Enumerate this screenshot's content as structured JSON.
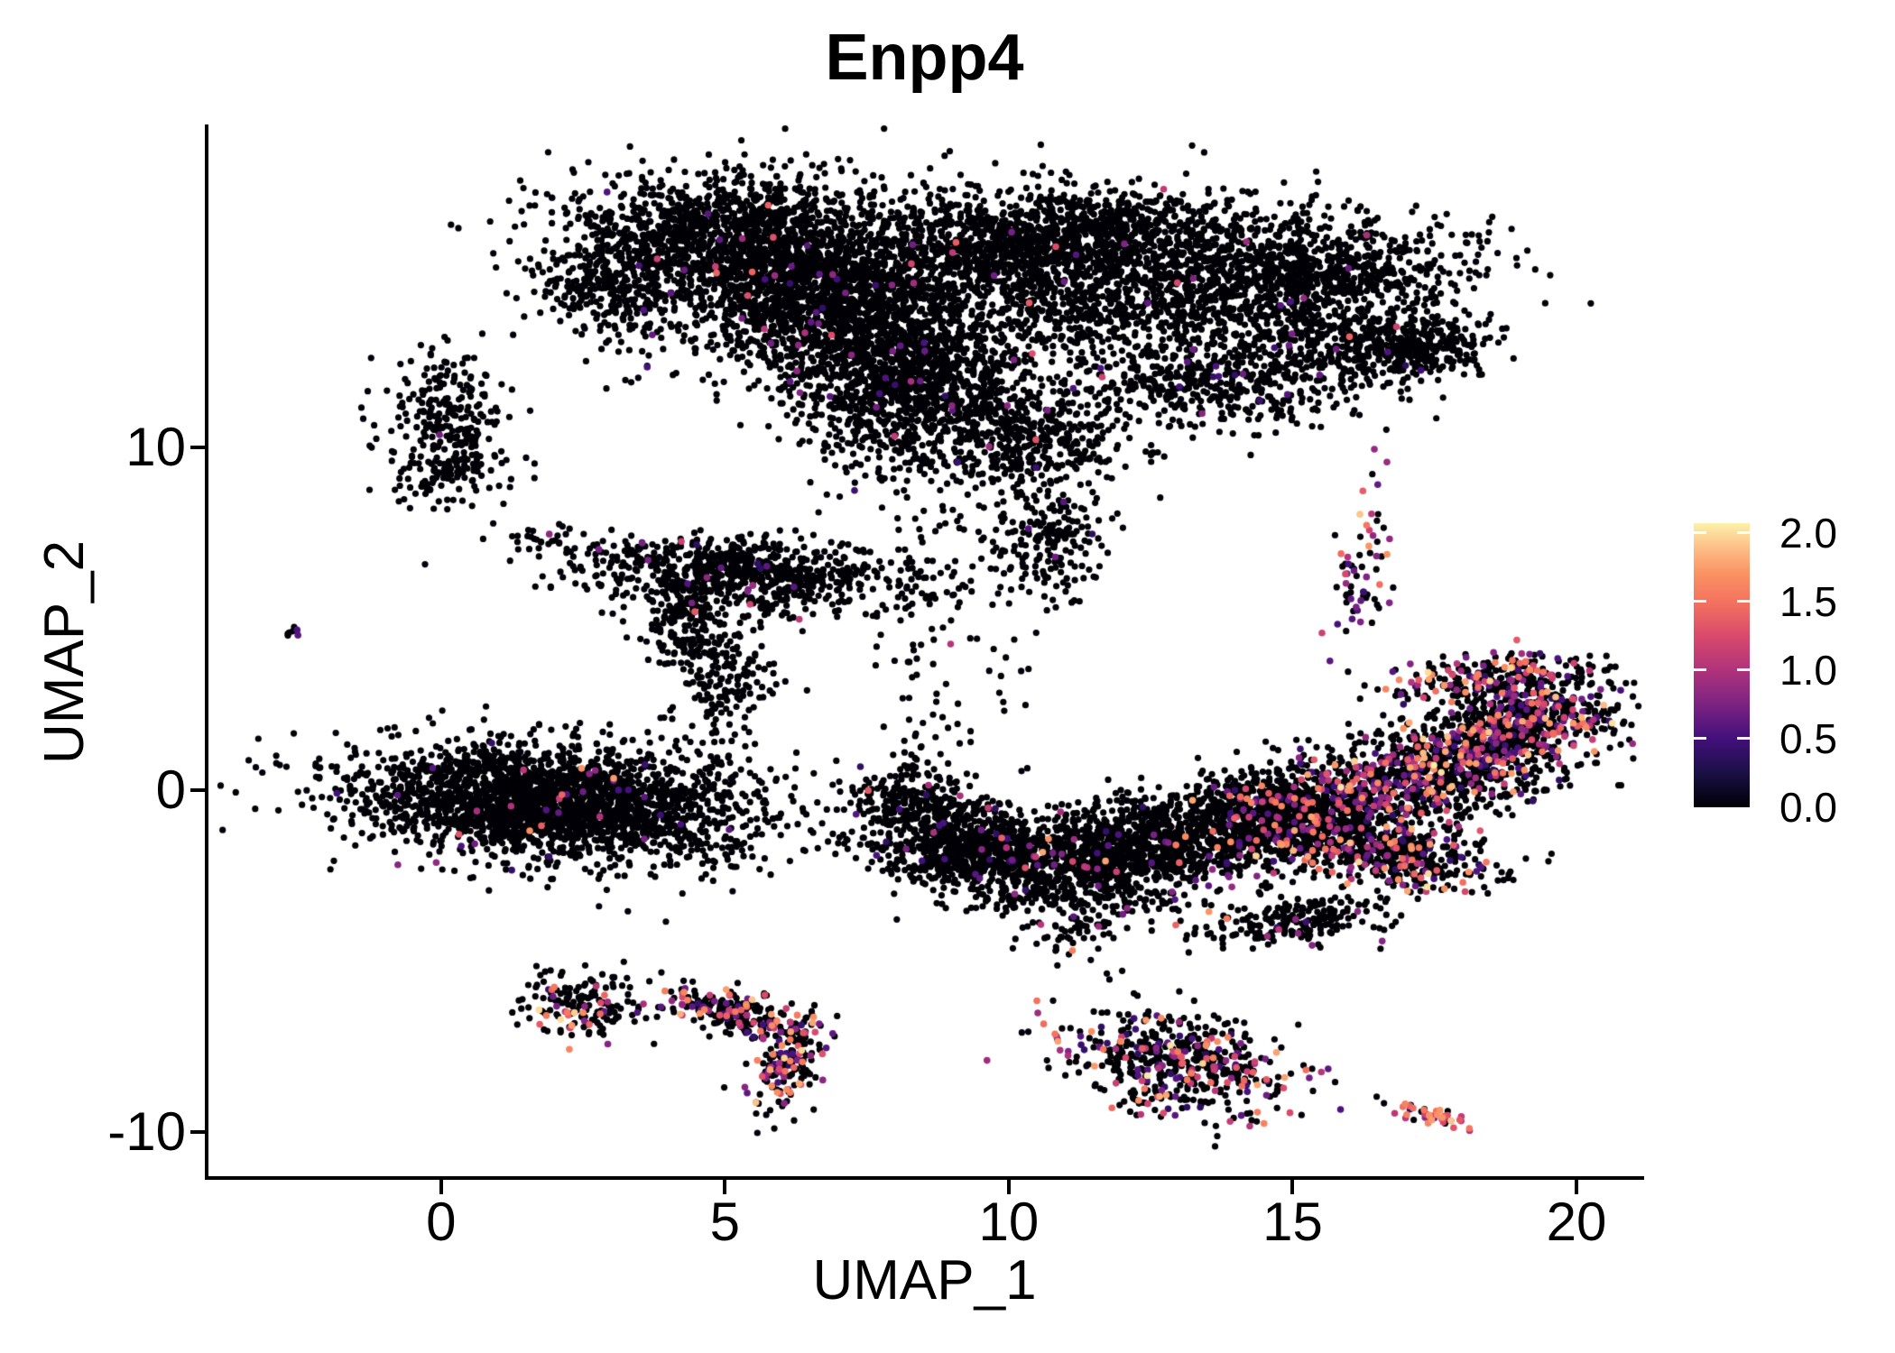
{
  "title": "Enpp4",
  "axes": {
    "x_label": "UMAP_1",
    "y_label": "UMAP_2",
    "x_ticks": [
      0,
      5,
      10,
      15,
      20
    ],
    "y_ticks": [
      -10,
      0,
      10
    ],
    "x_range": [
      -4.13,
      21.16
    ],
    "y_range": [
      -11.34,
      19.38
    ]
  },
  "colorbar": {
    "tick_labels": [
      "2.0",
      "1.5",
      "1.0",
      "0.5",
      "0.0"
    ],
    "tick_values": [
      2.0,
      1.5,
      1.0,
      0.5,
      0.0
    ],
    "vmax": 2.07,
    "stops": [
      {
        "v": 0.0,
        "c": "#000004"
      },
      {
        "v": 0.25,
        "c": "#1a1045"
      },
      {
        "v": 0.5,
        "c": "#43107c"
      },
      {
        "v": 0.75,
        "c": "#7b2382"
      },
      {
        "v": 1.0,
        "c": "#b0337b"
      },
      {
        "v": 1.25,
        "c": "#d94a6c"
      },
      {
        "v": 1.5,
        "c": "#f4735e"
      },
      {
        "v": 1.7,
        "c": "#fa9163"
      },
      {
        "v": 1.9,
        "c": "#fdc189"
      },
      {
        "v": 2.07,
        "c": "#fcf2a9"
      }
    ]
  },
  "chart_data": {
    "type": "scatter",
    "title": "Enpp4",
    "xlabel": "UMAP_1",
    "ylabel": "UMAP_2",
    "xlim": [
      -4.13,
      21.16
    ],
    "ylim": [
      -11.34,
      19.38
    ],
    "grid": false,
    "legend_position": "right",
    "point_radius_px": 3.6,
    "colored_point_radius_px": 3.8,
    "zero_color": "#000006",
    "seed": 7,
    "expr_bands": [
      [
        0.35,
        0.85
      ],
      [
        0.85,
        1.45
      ],
      [
        1.45,
        1.8
      ],
      [
        1.8,
        2.05
      ]
    ],
    "expr_profiles": {
      "low": [
        0.75,
        0.25,
        0.0,
        0.0
      ],
      "pure_low": [
        1.0,
        0.0,
        0.0,
        0.0
      ],
      "mid": [
        0.6,
        0.3,
        0.09,
        0.01
      ],
      "rich": [
        0.45,
        0.33,
        0.18,
        0.04
      ],
      "hot": [
        0.4,
        0.32,
        0.24,
        0.04
      ],
      "pink": [
        0.12,
        0.45,
        0.38,
        0.05
      ]
    },
    "cluster_fields": [
      "cx",
      "cy",
      "sx",
      "sy",
      "rot_deg",
      "n_points",
      "expressed_frac",
      "expr_profile"
    ],
    "clusters": [
      [
        5.1,
        16.1,
        1.5,
        0.95,
        0,
        1500,
        0.01,
        "low"
      ],
      [
        6.7,
        14.3,
        1.3,
        1.15,
        0,
        1500,
        0.01,
        "low"
      ],
      [
        8.3,
        12.0,
        1.05,
        1.3,
        0,
        1300,
        0.012,
        "low"
      ],
      [
        9.9,
        15.6,
        1.3,
        0.95,
        0,
        800,
        0.01,
        "low"
      ],
      [
        11.8,
        16.4,
        1.5,
        0.6,
        0,
        650,
        0.008,
        "low"
      ],
      [
        12.6,
        14.3,
        1.8,
        1.05,
        0,
        1000,
        0.01,
        "low"
      ],
      [
        15.3,
        15.1,
        1.4,
        0.9,
        0,
        850,
        0.01,
        "low"
      ],
      [
        16.4,
        13.0,
        0.9,
        0.6,
        0,
        380,
        0.01,
        "low"
      ],
      [
        17.5,
        12.9,
        0.4,
        0.3,
        0,
        110,
        0.01,
        "low"
      ],
      [
        13.7,
        11.7,
        1.2,
        0.55,
        0,
        380,
        0.012,
        "low"
      ],
      [
        2.9,
        14.6,
        0.6,
        0.65,
        0,
        220,
        0.012,
        "low"
      ],
      [
        10.3,
        10.4,
        1.0,
        0.85,
        0,
        450,
        0.012,
        "low"
      ],
      [
        10.7,
        7.3,
        0.5,
        0.85,
        0,
        200,
        0.015,
        "low"
      ],
      [
        8.7,
        6.2,
        0.55,
        1.4,
        0,
        60,
        0.02,
        "low"
      ],
      [
        0.05,
        11.0,
        0.48,
        0.95,
        0,
        220,
        0.012,
        "low"
      ],
      [
        0.1,
        9.3,
        0.5,
        0.5,
        0,
        110,
        0.012,
        "low"
      ],
      [
        -2.65,
        4.62,
        0.14,
        0.09,
        0,
        7,
        0.35,
        "pure_low"
      ],
      [
        1.85,
        7.3,
        0.5,
        0.24,
        -18,
        32,
        0.05,
        "low"
      ],
      [
        5.3,
        6.3,
        1.45,
        0.52,
        -6,
        800,
        0.018,
        "mid"
      ],
      [
        4.25,
        4.95,
        0.32,
        0.6,
        0,
        150,
        0.012,
        "low"
      ],
      [
        5.0,
        3.4,
        0.45,
        0.95,
        0,
        170,
        0.012,
        "low"
      ],
      [
        4.7,
        1.6,
        0.22,
        0.65,
        0,
        22,
        0.0,
        "low"
      ],
      [
        1.95,
        -0.35,
        1.8,
        0.82,
        -7,
        2500,
        0.02,
        "mid"
      ],
      [
        8.3,
        -0.3,
        0.5,
        0.55,
        0,
        220,
        0.03,
        "mid"
      ],
      [
        9.1,
        -1.5,
        0.8,
        0.6,
        0,
        550,
        0.03,
        "mid"
      ],
      [
        11.0,
        -2.2,
        1.25,
        0.6,
        0,
        850,
        0.035,
        "mid"
      ],
      [
        12.9,
        -1.4,
        1.2,
        0.6,
        0,
        750,
        0.04,
        "mid"
      ],
      [
        14.5,
        -0.4,
        0.8,
        0.5,
        0,
        380,
        0.07,
        "rich"
      ],
      [
        11.2,
        -4.2,
        0.45,
        0.55,
        0,
        55,
        0.03,
        "mid"
      ],
      [
        9.0,
        2.8,
        0.85,
        1.9,
        0,
        55,
        0.02,
        "low"
      ],
      [
        12.3,
        -3.3,
        1.4,
        0.5,
        0,
        50,
        0.04,
        "mid"
      ],
      [
        15.6,
        -1.0,
        1.0,
        0.68,
        0,
        650,
        0.2,
        "rich"
      ],
      [
        17.5,
        0.5,
        1.3,
        0.68,
        20,
        850,
        0.28,
        "rich"
      ],
      [
        19.1,
        2.0,
        0.95,
        0.5,
        18,
        520,
        0.3,
        "rich"
      ],
      [
        18.6,
        3.3,
        0.95,
        0.32,
        8,
        260,
        0.35,
        "rich"
      ],
      [
        16.8,
        -2.0,
        0.95,
        0.45,
        -12,
        360,
        0.22,
        "rich"
      ],
      [
        16.25,
        6.6,
        0.23,
        1.25,
        -8,
        68,
        0.45,
        "rich"
      ],
      [
        15.0,
        -3.85,
        0.85,
        0.34,
        13,
        210,
        0.05,
        "mid"
      ],
      [
        12.9,
        -8.0,
        1.05,
        0.72,
        -22,
        520,
        0.3,
        "hot"
      ],
      [
        2.45,
        -6.3,
        0.5,
        0.45,
        0,
        150,
        0.13,
        "hot"
      ],
      [
        3.4,
        -6.6,
        0.5,
        0.18,
        0,
        11,
        0.12,
        "pure_low"
      ],
      [
        5.1,
        -6.5,
        0.78,
        0.3,
        -25,
        220,
        0.3,
        "hot"
      ],
      [
        6.1,
        -8.0,
        0.27,
        0.75,
        -14,
        170,
        0.33,
        "hot"
      ],
      [
        17.45,
        -9.55,
        0.42,
        0.13,
        -18,
        44,
        0.75,
        "pink"
      ]
    ]
  }
}
